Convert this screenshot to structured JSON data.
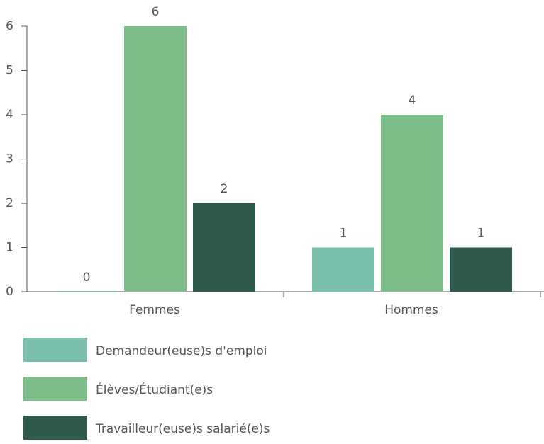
{
  "chart_data": {
    "type": "bar",
    "categories": [
      "Femmes",
      "Hommes"
    ],
    "series": [
      {
        "name": "Demandeur(euse)s d'emploi",
        "color": "#7bbfad",
        "values": [
          0,
          1
        ]
      },
      {
        "name": "Élèves/Étudiant(e)s",
        "color": "#7dbd8a",
        "values": [
          6,
          4
        ]
      },
      {
        "name": "Travailleur(euse)s salarié(e)s",
        "color": "#2d5a4c",
        "values": [
          2,
          1
        ]
      }
    ],
    "ylim": [
      0,
      6
    ],
    "yticks": [
      0,
      1,
      2,
      3,
      4,
      5,
      6
    ],
    "legend": "bottom"
  }
}
